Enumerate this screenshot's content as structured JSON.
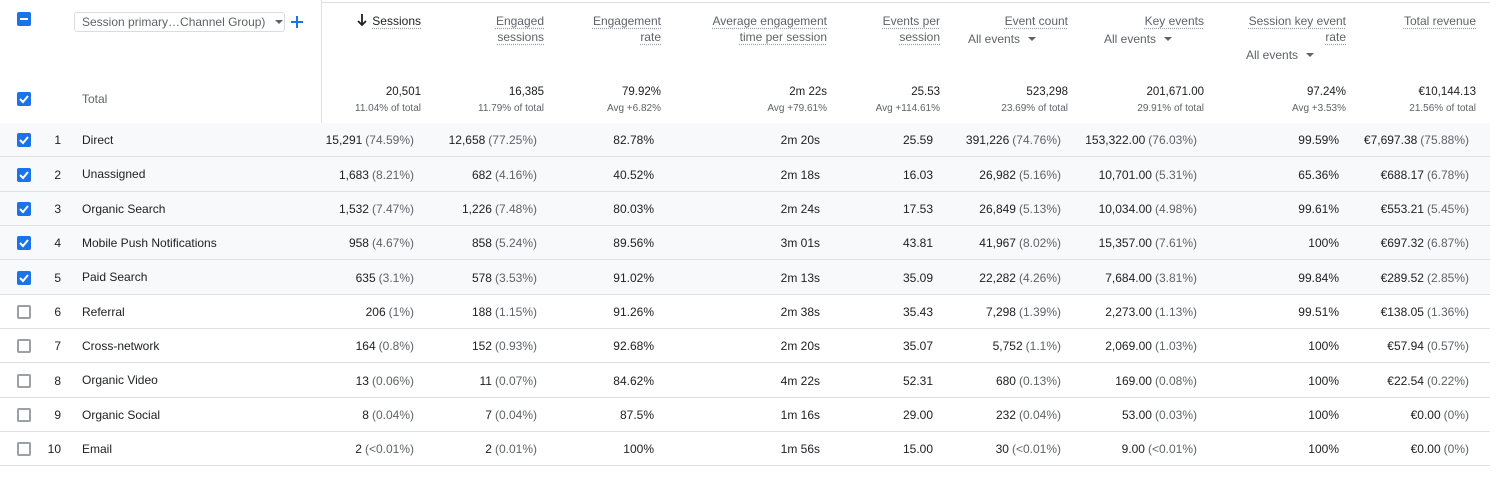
{
  "dimension_picker": "Session primary…Channel Group)",
  "columns": [
    {
      "label": "Sessions"
    },
    {
      "label": "Engaged sessions"
    },
    {
      "label": "Engagement rate"
    },
    {
      "label": "Average engagement time per session"
    },
    {
      "label": "Events per session"
    },
    {
      "label": "Event count",
      "filter": "All events"
    },
    {
      "label": "Key events",
      "filter": "All events"
    },
    {
      "label": "Session key event rate",
      "filter": "All events"
    },
    {
      "label": "Total revenue"
    }
  ],
  "total": {
    "label": "Total",
    "cells": [
      [
        "20,501",
        "11.04% of total"
      ],
      [
        "16,385",
        "11.79% of total"
      ],
      [
        "79.92%",
        "Avg +6.82%"
      ],
      [
        "2m 22s",
        "Avg +79.61%"
      ],
      [
        "25.53",
        "Avg +114.61%"
      ],
      [
        "523,298",
        "23.69% of total"
      ],
      [
        "201,671.00",
        "29.91% of total"
      ],
      [
        "97.24%",
        "Avg +3.53%"
      ],
      [
        "€10,144.13",
        "21.56% of total"
      ]
    ]
  },
  "rows": [
    {
      "index": 1,
      "checked": true,
      "name": "Direct",
      "cells": [
        [
          "15,291",
          "(74.59%)"
        ],
        [
          "12,658",
          "(77.25%)"
        ],
        [
          "82.78%"
        ],
        [
          "2m 20s"
        ],
        [
          "25.59"
        ],
        [
          "391,226",
          "(74.76%)"
        ],
        [
          "153,322.00",
          "(76.03%)"
        ],
        [
          "99.59%"
        ],
        [
          "€7,697.38",
          "(75.88%)"
        ]
      ]
    },
    {
      "index": 2,
      "checked": true,
      "name": "Unassigned",
      "cells": [
        [
          "1,683",
          "(8.21%)"
        ],
        [
          "682",
          "(4.16%)"
        ],
        [
          "40.52%"
        ],
        [
          "2m 18s"
        ],
        [
          "16.03"
        ],
        [
          "26,982",
          "(5.16%)"
        ],
        [
          "10,701.00",
          "(5.31%)"
        ],
        [
          "65.36%"
        ],
        [
          "€688.17",
          "(6.78%)"
        ]
      ]
    },
    {
      "index": 3,
      "checked": true,
      "name": "Organic Search",
      "cells": [
        [
          "1,532",
          "(7.47%)"
        ],
        [
          "1,226",
          "(7.48%)"
        ],
        [
          "80.03%"
        ],
        [
          "2m 24s"
        ],
        [
          "17.53"
        ],
        [
          "26,849",
          "(5.13%)"
        ],
        [
          "10,034.00",
          "(4.98%)"
        ],
        [
          "99.61%"
        ],
        [
          "€553.21",
          "(5.45%)"
        ]
      ]
    },
    {
      "index": 4,
      "checked": true,
      "name": "Mobile Push Notifications",
      "cells": [
        [
          "958",
          "(4.67%)"
        ],
        [
          "858",
          "(5.24%)"
        ],
        [
          "89.56%"
        ],
        [
          "3m 01s"
        ],
        [
          "43.81"
        ],
        [
          "41,967",
          "(8.02%)"
        ],
        [
          "15,357.00",
          "(7.61%)"
        ],
        [
          "100%"
        ],
        [
          "€697.32",
          "(6.87%)"
        ]
      ]
    },
    {
      "index": 5,
      "checked": true,
      "name": "Paid Search",
      "cells": [
        [
          "635",
          "(3.1%)"
        ],
        [
          "578",
          "(3.53%)"
        ],
        [
          "91.02%"
        ],
        [
          "2m 13s"
        ],
        [
          "35.09"
        ],
        [
          "22,282",
          "(4.26%)"
        ],
        [
          "7,684.00",
          "(3.81%)"
        ],
        [
          "99.84%"
        ],
        [
          "€289.52",
          "(2.85%)"
        ]
      ]
    },
    {
      "index": 6,
      "checked": false,
      "name": "Referral",
      "cells": [
        [
          "206",
          "(1%)"
        ],
        [
          "188",
          "(1.15%)"
        ],
        [
          "91.26%"
        ],
        [
          "2m 38s"
        ],
        [
          "35.43"
        ],
        [
          "7,298",
          "(1.39%)"
        ],
        [
          "2,273.00",
          "(1.13%)"
        ],
        [
          "99.51%"
        ],
        [
          "€138.05",
          "(1.36%)"
        ]
      ]
    },
    {
      "index": 7,
      "checked": false,
      "name": "Cross-network",
      "cells": [
        [
          "164",
          "(0.8%)"
        ],
        [
          "152",
          "(0.93%)"
        ],
        [
          "92.68%"
        ],
        [
          "2m 20s"
        ],
        [
          "35.07"
        ],
        [
          "5,752",
          "(1.1%)"
        ],
        [
          "2,069.00",
          "(1.03%)"
        ],
        [
          "100%"
        ],
        [
          "€57.94",
          "(0.57%)"
        ]
      ]
    },
    {
      "index": 8,
      "checked": false,
      "name": "Organic Video",
      "cells": [
        [
          "13",
          "(0.06%)"
        ],
        [
          "11",
          "(0.07%)"
        ],
        [
          "84.62%"
        ],
        [
          "4m 22s"
        ],
        [
          "52.31"
        ],
        [
          "680",
          "(0.13%)"
        ],
        [
          "169.00",
          "(0.08%)"
        ],
        [
          "100%"
        ],
        [
          "€22.54",
          "(0.22%)"
        ]
      ]
    },
    {
      "index": 9,
      "checked": false,
      "name": "Organic Social",
      "cells": [
        [
          "8",
          "(0.04%)"
        ],
        [
          "7",
          "(0.04%)"
        ],
        [
          "87.5%"
        ],
        [
          "1m 16s"
        ],
        [
          "29.00"
        ],
        [
          "232",
          "(0.04%)"
        ],
        [
          "53.00",
          "(0.03%)"
        ],
        [
          "100%"
        ],
        [
          "€0.00",
          "(0%)"
        ]
      ]
    },
    {
      "index": 10,
      "checked": false,
      "name": "Email",
      "cells": [
        [
          "2",
          "(<0.01%)"
        ],
        [
          "2",
          "(0.01%)"
        ],
        [
          "100%"
        ],
        [
          "1m 56s"
        ],
        [
          "15.00"
        ],
        [
          "30",
          "(<0.01%)"
        ],
        [
          "9.00",
          "(<0.01%)"
        ],
        [
          "100%"
        ],
        [
          "€0.00",
          "(0%)"
        ]
      ]
    }
  ]
}
